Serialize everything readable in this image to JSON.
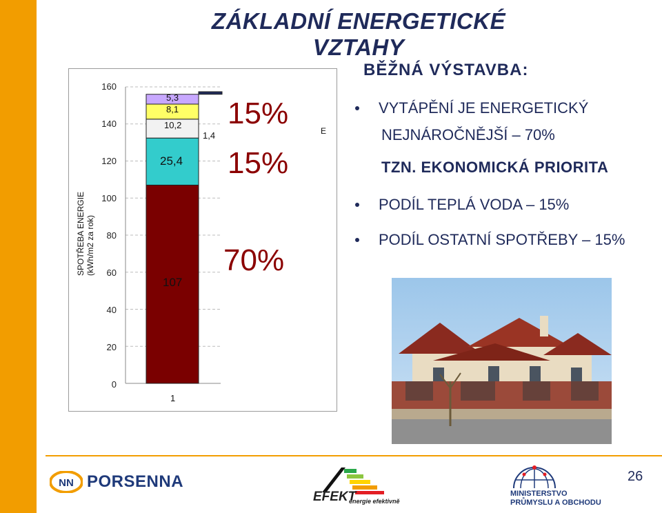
{
  "title": "ZÁKLADNÍ ENERGETICKÉ VZTAHY",
  "chart": {
    "ylabel_line1": "SPOTŘEBA ENERGIE",
    "ylabel_line2": "(kWh/m2 za rok)",
    "y_ticks": [
      "160",
      "140",
      "120",
      "100",
      "80",
      "60",
      "40",
      "20",
      "0"
    ],
    "x_tick": "1",
    "segment_labels": {
      "heating": "107",
      "hot_water": "25,4",
      "seg3": "10,2",
      "seg4": "8,1",
      "seg5": "5,3",
      "seg6": "1,4",
      "legend_e": "E"
    },
    "percent_labels": {
      "p1": "15%",
      "p2": "15%",
      "p3": "70%"
    }
  },
  "chart_data": {
    "type": "bar",
    "categories": [
      "1"
    ],
    "series": [
      {
        "values": [
          107
        ],
        "color": "#7a0000"
      },
      {
        "values": [
          25.4
        ],
        "color": "#33cccc"
      },
      {
        "values": [
          10.2
        ],
        "color": "#f2f2f2"
      },
      {
        "values": [
          8.1
        ],
        "color": "#ffff66"
      },
      {
        "values": [
          5.3
        ],
        "color": "#c8a8ff"
      },
      {
        "values": [
          1.4
        ],
        "color": "#1f2a5a"
      }
    ],
    "ylabel": "SPOTŘEBA ENERGIE (kWh/m2 za rok)",
    "ylim": [
      0,
      160
    ],
    "grid": true
  },
  "right": {
    "heading": "BĚŽNÁ VÝSTAVBA:",
    "b1_line1": "VYTÁPĚNÍ JE ENERGETICKÝ",
    "b1_line2": "NEJNÁROČNĚJŠÍ – 70%",
    "tzn": "TZN. EKONOMICKÁ PRIORITA",
    "b2": "PODÍL TEPLÁ VODA – 15%",
    "b3": "PODÍL OSTATNÍ SPOTŘEBY – 15%"
  },
  "footer": {
    "page_number": "26",
    "porsenna": "PORSENNA",
    "efekt": "EFEKT",
    "efekt_sub": "energie efektivně",
    "ministry_line1": "MINISTERSTVO",
    "ministry_line2": "PRŮMYSLU A OBCHODU"
  },
  "colors": {
    "accent": "#f29d00",
    "navy": "#1f2a5a",
    "percent": "#8b0000"
  }
}
